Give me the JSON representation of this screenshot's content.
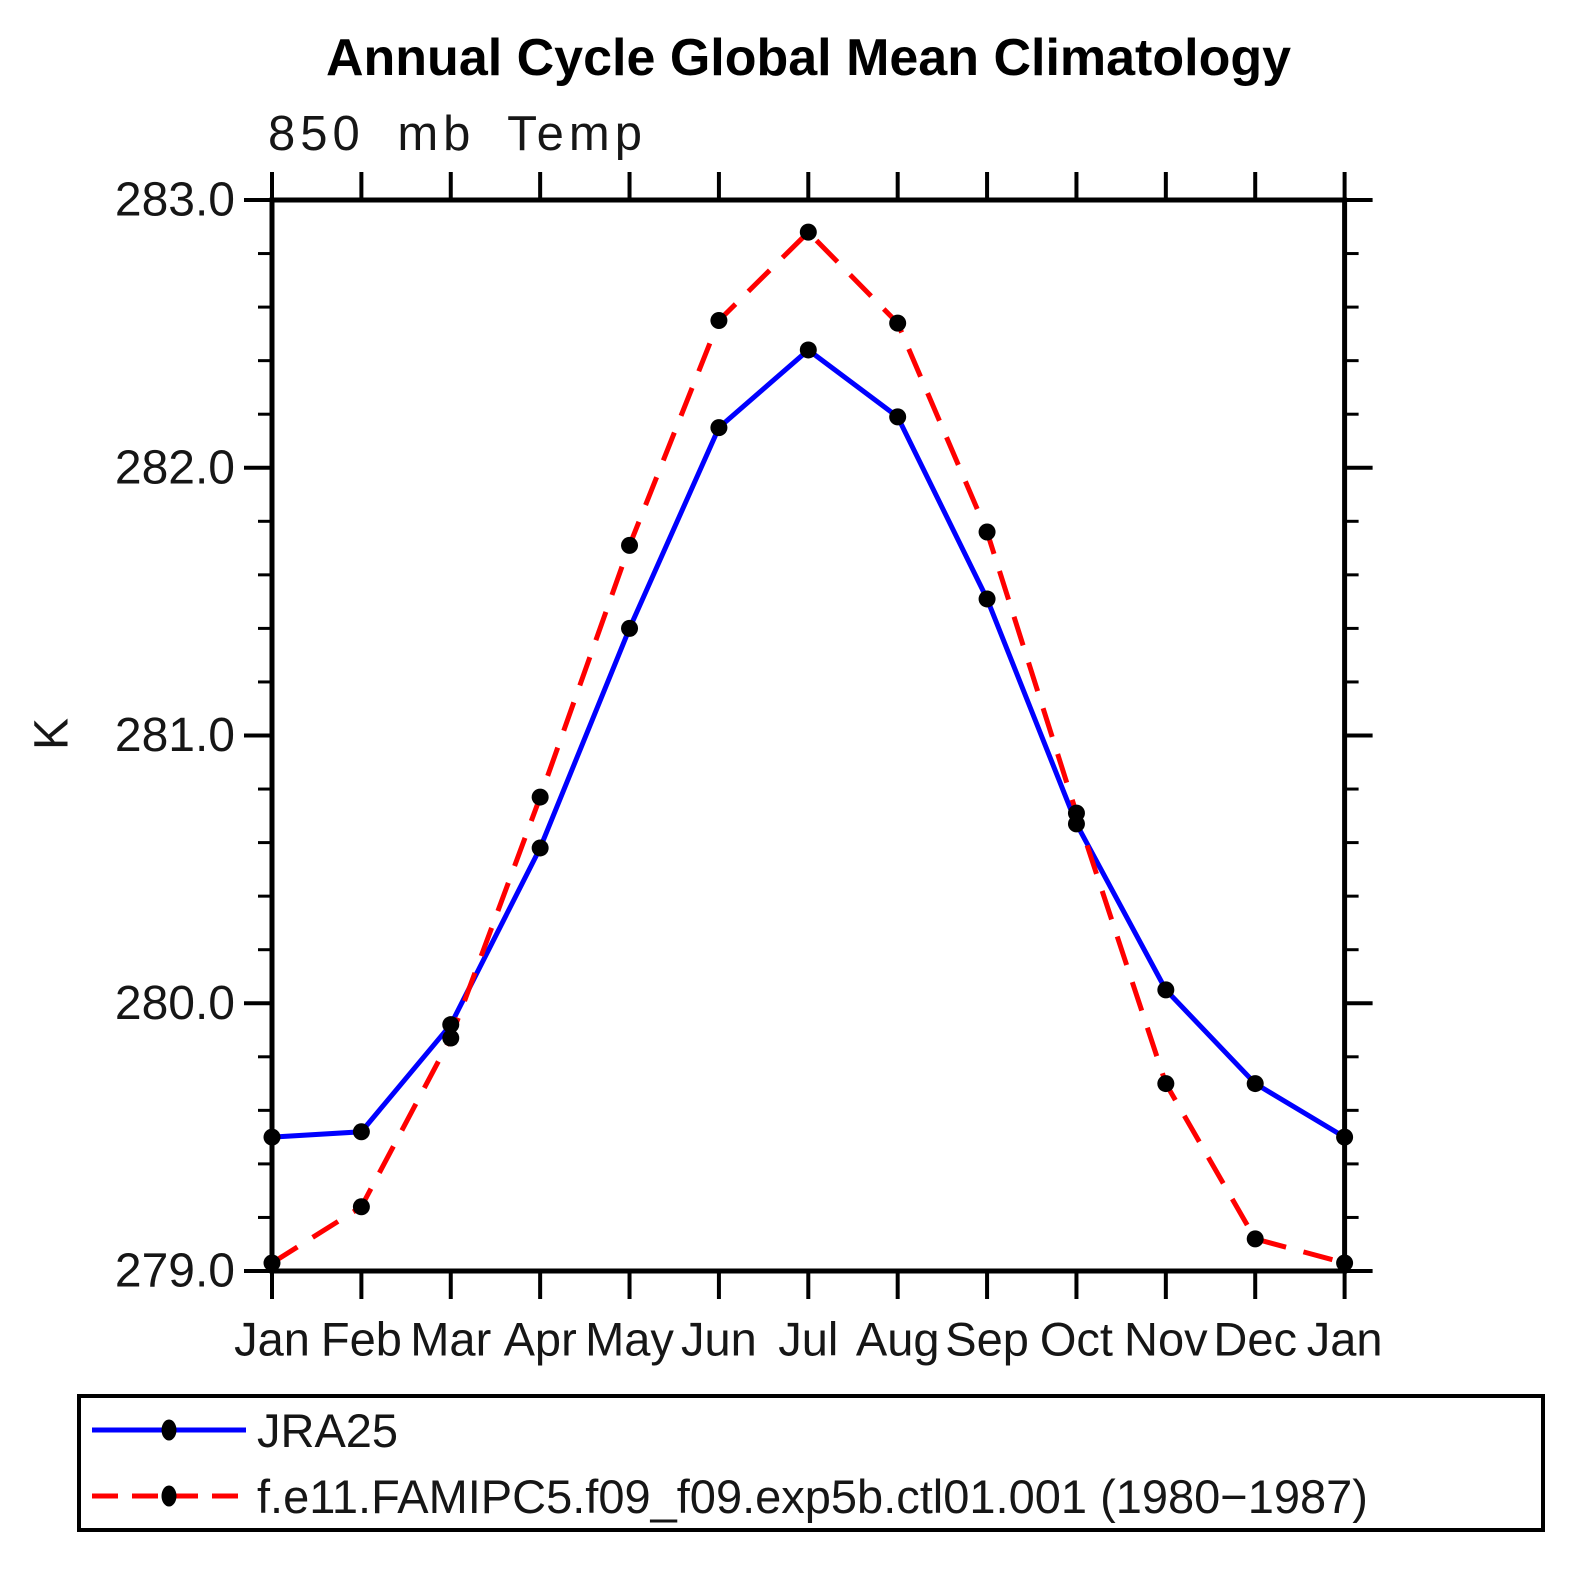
{
  "title": "Annual Cycle Global Mean Climatology",
  "subtitle": "850 mb Temp",
  "y_axis_label": "K",
  "chart_data": {
    "type": "line",
    "categories": [
      "Jan",
      "Feb",
      "Mar",
      "Apr",
      "May",
      "Jun",
      "Jul",
      "Aug",
      "Sep",
      "Oct",
      "Nov",
      "Dec",
      "Jan"
    ],
    "series": [
      {
        "name": "JRA25",
        "color": "#0000ff",
        "style": "solid",
        "marker": "black-dot",
        "values": [
          279.5,
          279.52,
          279.92,
          280.58,
          281.4,
          282.15,
          282.44,
          282.19,
          281.51,
          280.67,
          280.05,
          279.7,
          279.5
        ]
      },
      {
        "name": "f.e11.FAMIPC5.f09_f09.exp5b.ctl01.001 (1980−1987)",
        "color": "#ff0000",
        "style": "dashed",
        "marker": "black-dot",
        "values": [
          279.03,
          279.24,
          279.87,
          280.77,
          281.71,
          282.55,
          282.88,
          282.54,
          281.76,
          280.71,
          279.7,
          279.12,
          279.03
        ]
      }
    ],
    "xlabel": "",
    "ylabel": "K",
    "ylim": [
      279.0,
      283.0
    ],
    "y_major_ticks": [
      279.0,
      280.0,
      281.0,
      282.0,
      283.0
    ],
    "y_tick_labels": [
      "279.0",
      "280.0",
      "281.0",
      "282.0",
      "283.0"
    ],
    "y_minor_step": 0.2,
    "grid": false,
    "legend_position": "bottom",
    "axis_color": "#000000",
    "marker_color": "#000000"
  }
}
